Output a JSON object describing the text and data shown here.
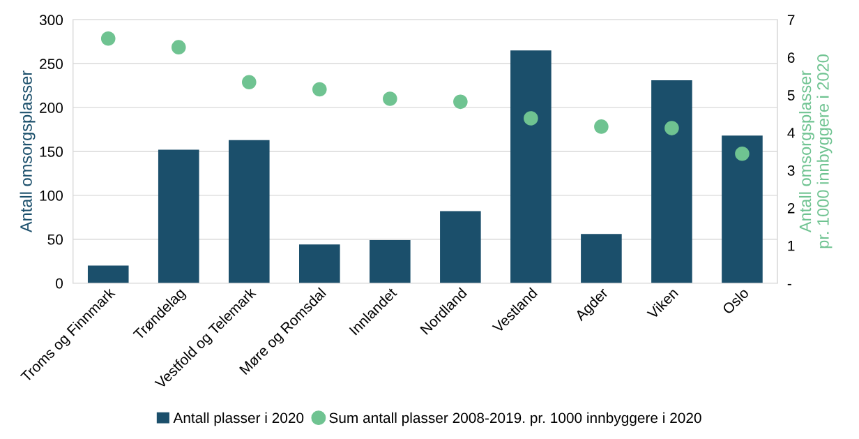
{
  "chart_data": {
    "type": "bar",
    "categories": [
      "Troms og Finnmark",
      "Trøndelag",
      "Vestfold og Telemark",
      "Møre og Romsdal",
      "Innlandet",
      "Nordland",
      "Vestland",
      "Agder",
      "Viken",
      "Oslo"
    ],
    "series": [
      {
        "name": "Antall plasser i 2020",
        "color": "#1b4f6b",
        "values": [
          20,
          152,
          163,
          44,
          49,
          82,
          265,
          56,
          231,
          168
        ]
      },
      {
        "name": "Sum antall plasser 2008-2019. pr. 1000 innbyggere i 2020",
        "type": "scatter",
        "axis": "y2",
        "color": "#6fc391",
        "values": [
          6.5,
          6.27,
          5.34,
          5.15,
          4.9,
          4.82,
          4.38,
          4.16,
          4.12,
          3.44
        ]
      }
    ],
    "ylabel": "Antall omsorgsplasser",
    "y2label": "Antall omsorgsplasser\npr. 1000 innbyggere i 2020",
    "ylim": [
      0,
      300
    ],
    "yticks": [
      0,
      50,
      100,
      150,
      200,
      250,
      300
    ],
    "y2lim": [
      0,
      7
    ],
    "y2ticks": [
      {
        "value": 0,
        "label": "-"
      },
      1,
      2,
      3,
      4,
      5,
      6,
      7
    ],
    "grid": "y",
    "legend": "bottom",
    "marker": "circle"
  }
}
